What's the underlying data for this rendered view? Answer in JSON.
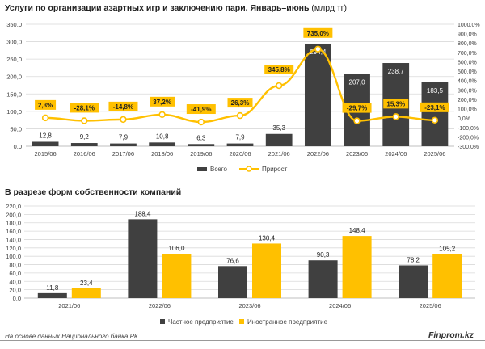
{
  "header": {
    "title1_bold": "Услуги по организации азартных игр и заключению пари. Январь–июнь",
    "title1_unit": "(млрд тг)",
    "title2": "В разрезе форм собственности компаний"
  },
  "footer": {
    "source": "На основе данных Национального банка РК",
    "brand": "Finprom.kz"
  },
  "colors": {
    "bar_dark": "#404040",
    "line_yellow": "#FFC000",
    "grid": "#D9D9D9",
    "axis_text": "#404040"
  },
  "chart_data": [
    {
      "type": "bar",
      "title": "Услуги по организации азартных игр и заключению пари. Январь–июнь (млрд тг)",
      "categories": [
        "2015/06",
        "2016/06",
        "2017/06",
        "2018/06",
        "2019/06",
        "2020/06",
        "2021/06",
        "2022/06",
        "2023/06",
        "2024/06",
        "2025/06"
      ],
      "series": [
        {
          "name": "Всего",
          "kind": "bar",
          "axis": "left",
          "values": [
            12.8,
            9.2,
            7.9,
            10.8,
            6.3,
            7.9,
            35.3,
            294.4,
            207.0,
            238.7,
            183.5
          ],
          "labels": [
            "12,8",
            "9,2",
            "7,9",
            "10,8",
            "6,3",
            "7,9",
            "35,3",
            "294,4",
            "207,0",
            "238,7",
            "183,5"
          ]
        },
        {
          "name": "Прирост",
          "kind": "line",
          "axis": "right",
          "values": [
            2.3,
            -28.1,
            -14.8,
            37.2,
            -41.9,
            26.3,
            345.8,
            735.0,
            -29.7,
            15.3,
            -23.1
          ],
          "labels": [
            "2,3%",
            "-28,1%",
            "-14,8%",
            "37,2%",
            "-41,9%",
            "26,3%",
            "345,8%",
            "735,0%",
            "-29,7%",
            "15,3%",
            "-23,1%"
          ]
        }
      ],
      "ylim": [
        0,
        350
      ],
      "yticks": [
        "0,0",
        "50,0",
        "100,0",
        "150,0",
        "200,0",
        "250,0",
        "300,0",
        "350,0"
      ],
      "y2lim": [
        -300,
        1000
      ],
      "y2ticks": [
        "-300,0%",
        "-200,0%",
        "-100,0%",
        "0,0%",
        "100,0%",
        "200,0%",
        "300,0%",
        "400,0%",
        "500,0%",
        "600,0%",
        "700,0%",
        "800,0%",
        "900,0%",
        "1000,0%"
      ],
      "legend": [
        "Всего",
        "Прирост"
      ],
      "legend_position": "bottom"
    },
    {
      "type": "bar",
      "title": "В разрезе форм собственности компаний",
      "categories": [
        "2021/06",
        "2022/06",
        "2023/06",
        "2024/06",
        "2025/06"
      ],
      "series": [
        {
          "name": "Частное предприятие",
          "values": [
            11.8,
            188.4,
            76.6,
            90.3,
            78.2
          ],
          "labels": [
            "11,8",
            "188,4",
            "76,6",
            "90,3",
            "78,2"
          ]
        },
        {
          "name": "Иностранное предприятие",
          "values": [
            23.4,
            106.0,
            130.4,
            148.4,
            105.2
          ],
          "labels": [
            "23,4",
            "106,0",
            "130,4",
            "148,4",
            "105,2"
          ]
        }
      ],
      "ylim": [
        0,
        220
      ],
      "yticks": [
        "0,0",
        "20,0",
        "40,0",
        "60,0",
        "80,0",
        "100,0",
        "120,0",
        "140,0",
        "160,0",
        "180,0",
        "200,0",
        "220,0"
      ],
      "legend": [
        "Частное предприятие",
        "Иностранное предприятие"
      ],
      "legend_position": "bottom"
    }
  ]
}
